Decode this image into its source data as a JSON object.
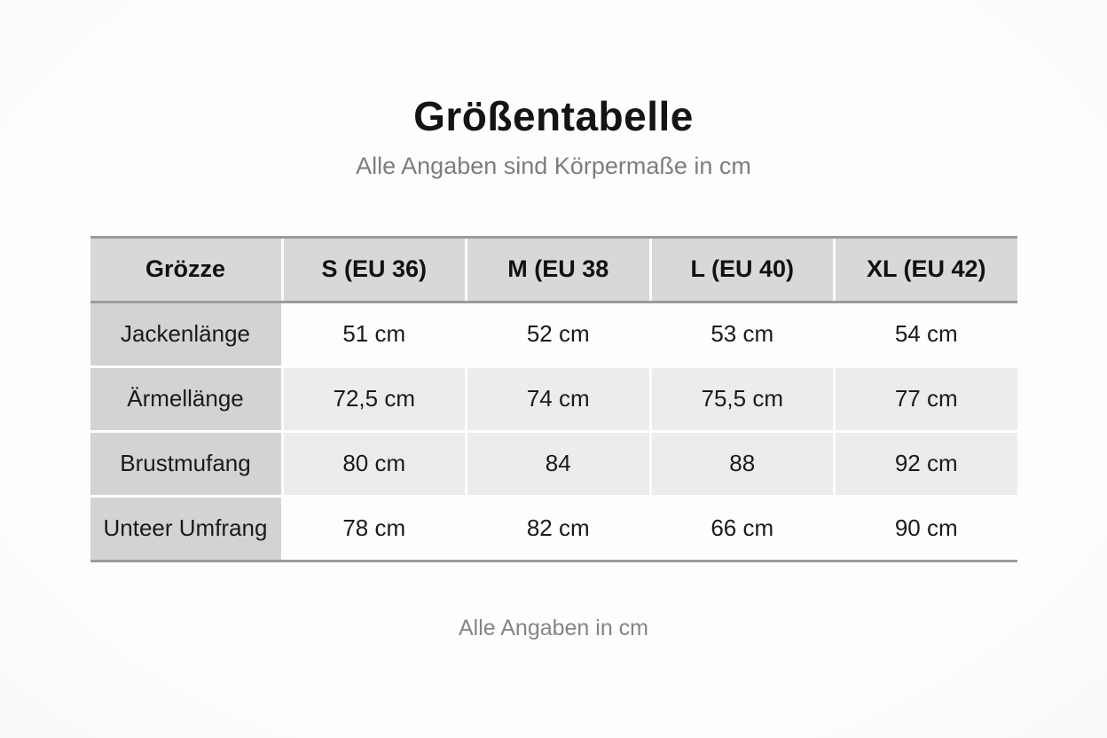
{
  "page": {
    "title": "Größentabelle",
    "subtitle": "Alle Angaben sind Körpermaße in cm",
    "footer_note": "Alle Angaben in cm"
  },
  "table": {
    "header": [
      "Grözze",
      "S (EU 36)",
      "M (EU 38",
      "L (EU 40)",
      "XL (EU 42)"
    ],
    "rows": [
      {
        "label": "Jackenlänge",
        "values": [
          "51 cm",
          "52 cm",
          "53 cm",
          "54 cm"
        ]
      },
      {
        "label": "Ärmellänge",
        "values": [
          "72,5 cm",
          "74 cm",
          "75,5 cm",
          "77 cm"
        ]
      },
      {
        "label": "Brustmufang",
        "values": [
          "80 cm",
          "84",
          "88",
          "92 cm"
        ]
      },
      {
        "label": "Unteer Umfrang",
        "values": [
          "78 cm",
          "82 cm",
          "66 cm",
          "90 cm"
        ]
      }
    ]
  },
  "colors": {
    "page_background": "#fafafa",
    "header_cell": "#d8d8d8",
    "label_cell": "#d3d3d3",
    "row_white": "#fdfdfd",
    "row_gray": "#ececec",
    "table_rule": "#9b9b9b",
    "title_text": "#141414",
    "muted_text": "#7d7d7d"
  }
}
